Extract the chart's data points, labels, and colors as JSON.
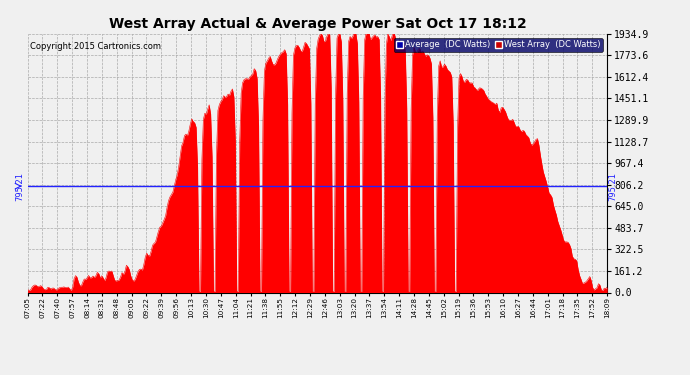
{
  "title": "West Array Actual & Average Power Sat Oct 17 18:12",
  "copyright": "Copyright 2015 Cartronics.com",
  "average_value": 795.21,
  "y_max": 1934.9,
  "y_ticks": [
    0.0,
    161.2,
    322.5,
    483.7,
    645.0,
    806.2,
    967.4,
    1128.7,
    1289.9,
    1451.1,
    1612.4,
    1773.6,
    1934.9
  ],
  "legend_avg_label": "Average  (DC Watts)",
  "legend_west_label": "West Array  (DC Watts)",
  "legend_avg_bg": "#0000aa",
  "legend_west_bg": "#cc0000",
  "fill_color": "#ff0000",
  "avg_line_color": "#2222ff",
  "grid_color": "#aaaaaa",
  "x_labels": [
    "07:05",
    "07:22",
    "07:40",
    "07:57",
    "08:14",
    "08:31",
    "08:48",
    "09:05",
    "09:22",
    "09:39",
    "09:56",
    "10:13",
    "10:30",
    "10:47",
    "11:04",
    "11:21",
    "11:38",
    "11:55",
    "12:12",
    "12:29",
    "12:46",
    "13:03",
    "13:20",
    "13:37",
    "13:54",
    "14:11",
    "14:28",
    "14:45",
    "15:02",
    "15:19",
    "15:36",
    "15:53",
    "16:10",
    "16:27",
    "16:44",
    "17:01",
    "17:18",
    "17:35",
    "17:52",
    "18:09"
  ],
  "num_points": 400
}
